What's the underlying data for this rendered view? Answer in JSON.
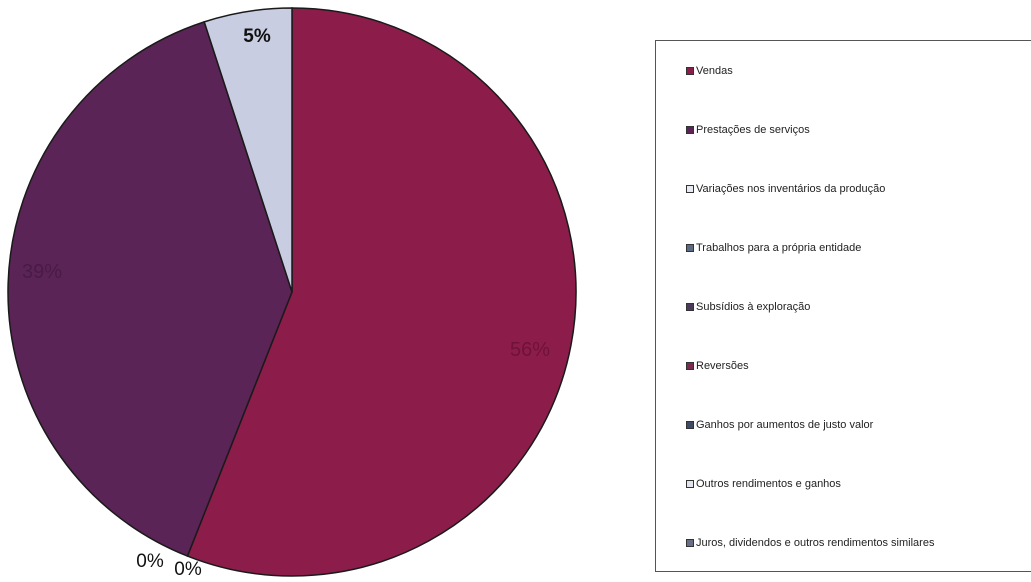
{
  "chart_data": {
    "type": "pie",
    "slices": [
      {
        "label": "Vendas",
        "value": 56,
        "data_label": "56%",
        "color": "#8c1d4a"
      },
      {
        "label": "Prestações de serviços",
        "value": 39,
        "data_label": "39%",
        "color": "#5b2456"
      },
      {
        "label": "Variações nos inventários da produção",
        "value": 0,
        "data_label": "0%",
        "color": "#cfd3e6"
      },
      {
        "label": "Trabalhos para a própria entidade",
        "value": 0,
        "data_label": "0%",
        "color": "#4f5a7a"
      },
      {
        "label": "Juros, dividendos e outros rendimentos similares",
        "value": 5,
        "data_label": "5%",
        "color": "#c9cde2"
      }
    ],
    "legend": [
      {
        "label": "Vendas",
        "color": "#8c1d4a"
      },
      {
        "label": "Prestações de serviços",
        "color": "#5b2456"
      },
      {
        "label": "Variações nos inventários da produção",
        "color": "#e8eaf2"
      },
      {
        "label": "Trabalhos para a própria entidade",
        "color": "#5d6a86"
      },
      {
        "label": "Subsídios à exploração",
        "color": "#4a3a5c"
      },
      {
        "label": "Reversões",
        "color": "#7a2a4f"
      },
      {
        "label": "Ganhos por aumentos de justo valor",
        "color": "#3e4a66"
      },
      {
        "label": "Outros rendimentos e ganhos",
        "color": "#e0e2ec"
      },
      {
        "label": "Juros, dividendos e outros rendimentos similares",
        "color": "#6a6f88"
      }
    ],
    "legend_position": "right"
  }
}
